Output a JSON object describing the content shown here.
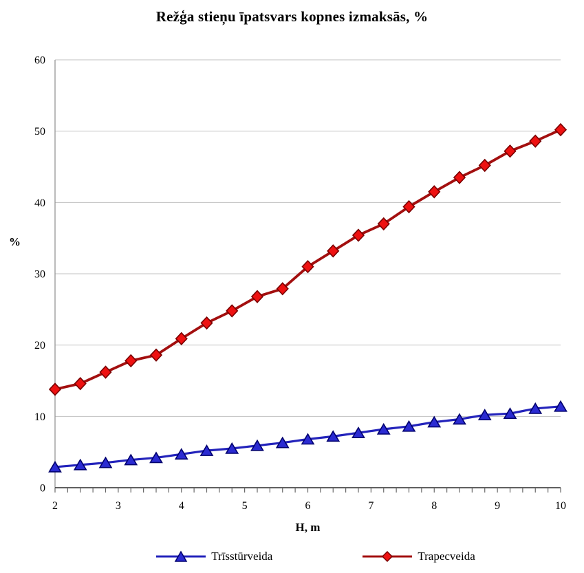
{
  "title": "Režģa stieņu īpatsvars kopnes izmaksās, %",
  "y_axis_label": "%",
  "x_axis_label": "H, m",
  "colors": {
    "gridline": "#c0c0c0",
    "y_axis": "#969696",
    "x_axis": "#2b2b2b",
    "tick": "#666666",
    "tick_label": "#000000"
  },
  "chart_data": {
    "type": "line",
    "title": "Režģa stieņu īpatsvars kopnes izmaksās, %",
    "xlabel": "H, m",
    "ylabel": "%",
    "xlim": [
      2,
      10
    ],
    "ylim": [
      0,
      60
    ],
    "y_ticks": [
      0,
      10,
      20,
      30,
      40,
      50,
      60
    ],
    "x_major_ticks": [
      2,
      3,
      4,
      5,
      6,
      7,
      8,
      9,
      10
    ],
    "x_minor_tick_step": 0.2,
    "grid": "horizontal",
    "legend_position": "bottom",
    "x": [
      2.0,
      2.4,
      2.8,
      3.2,
      3.6,
      4.0,
      4.4,
      4.8,
      5.2,
      5.6,
      6.0,
      6.4,
      6.8,
      7.2,
      7.6,
      8.0,
      8.4,
      8.8,
      9.2,
      9.6,
      10.0
    ],
    "series": [
      {
        "name": "Trīsstūrveida",
        "marker": "triangle",
        "line_color": "#2323bb",
        "fill_color": "#2b2bd2",
        "edge_color": "#00006e",
        "line_width": 3.2,
        "values": [
          2.9,
          3.2,
          3.5,
          3.9,
          4.2,
          4.7,
          5.2,
          5.5,
          5.9,
          6.3,
          6.8,
          7.2,
          7.7,
          8.2,
          8.6,
          9.2,
          9.6,
          10.2,
          10.4,
          11.1,
          11.4
        ]
      },
      {
        "name": "Trapecveida",
        "marker": "diamond",
        "line_color": "#a30f0f",
        "fill_color": "#ee1111",
        "edge_color": "#7a0000",
        "line_width": 3.8,
        "values": [
          13.8,
          14.6,
          16.2,
          17.8,
          18.6,
          20.9,
          23.1,
          24.8,
          26.8,
          27.9,
          31.0,
          33.2,
          35.4,
          37.0,
          39.4,
          41.5,
          43.5,
          45.2,
          47.2,
          48.6,
          50.2
        ]
      }
    ]
  }
}
